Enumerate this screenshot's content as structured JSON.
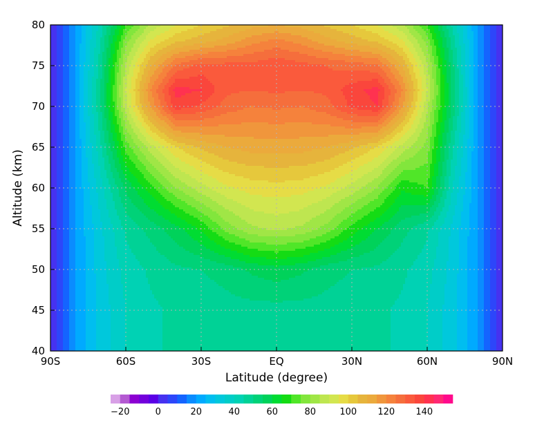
{
  "chart_data": {
    "type": "heatmap",
    "xlabel": "Latitude (degree)",
    "ylabel": "Altitude (km)",
    "xlim": [
      -90,
      90
    ],
    "ylim": [
      40,
      80
    ],
    "x_ticks": [
      {
        "value": -90,
        "label": "90S"
      },
      {
        "value": -60,
        "label": "60S"
      },
      {
        "value": -30,
        "label": "30S"
      },
      {
        "value": 0,
        "label": "EQ"
      },
      {
        "value": 30,
        "label": "30N"
      },
      {
        "value": 60,
        "label": "60N"
      },
      {
        "value": 90,
        "label": "90N"
      }
    ],
    "y_ticks": [
      {
        "value": 40,
        "label": "40"
      },
      {
        "value": 45,
        "label": "45"
      },
      {
        "value": 50,
        "label": "50"
      },
      {
        "value": 55,
        "label": "55"
      },
      {
        "value": 60,
        "label": "60"
      },
      {
        "value": 65,
        "label": "65"
      },
      {
        "value": 70,
        "label": "70"
      },
      {
        "value": 75,
        "label": "75"
      },
      {
        "value": 80,
        "label": "80"
      }
    ],
    "grid": true,
    "colorbar": {
      "placement": "bottom",
      "min": -25,
      "max": 155,
      "step": 5,
      "ticks": [
        {
          "value": -20,
          "label": "−20"
        },
        {
          "value": 0,
          "label": "0"
        },
        {
          "value": 20,
          "label": "20"
        },
        {
          "value": 40,
          "label": "40"
        },
        {
          "value": 60,
          "label": "60"
        },
        {
          "value": 80,
          "label": "80"
        },
        {
          "value": 100,
          "label": "100"
        },
        {
          "value": 120,
          "label": "120"
        },
        {
          "value": 140,
          "label": "140"
        }
      ],
      "colors": [
        "#d8a0e6",
        "#b45ad2",
        "#8c00d2",
        "#7300dc",
        "#5a00e6",
        "#4632f0",
        "#2d46fa",
        "#1464ff",
        "#0a8cff",
        "#00aaff",
        "#00bef0",
        "#00c8dc",
        "#00cdc8",
        "#00d2b4",
        "#00d296",
        "#00d278",
        "#00d25a",
        "#00dc32",
        "#14dc14",
        "#50e628",
        "#82e63c",
        "#a0e646",
        "#bee650",
        "#d2e650",
        "#e6dc46",
        "#e6c83c",
        "#e6b43c",
        "#ebaa3c",
        "#f0963c",
        "#f5823c",
        "#f56e3c",
        "#fa5a3c",
        "#fa463c",
        "#ff3250",
        "#ff2873",
        "#ff0a8c"
      ]
    },
    "description_grid": {
      "lats": [
        -90,
        -80,
        -70,
        -60,
        -50,
        -40,
        -30,
        -20,
        -10,
        0,
        10,
        20,
        30,
        40,
        50,
        60,
        70,
        80,
        90
      ],
      "alts": [
        40,
        45,
        50,
        55,
        60,
        65,
        70,
        72,
        75,
        78,
        80
      ],
      "values": [
        [
          0,
          20,
          32,
          40,
          44,
          46,
          47,
          48,
          48,
          47,
          48,
          48,
          47,
          46,
          44,
          40,
          32,
          20,
          0
        ],
        [
          0,
          20,
          32,
          40,
          44,
          46,
          47,
          48,
          48,
          48,
          48,
          48,
          47,
          46,
          44,
          40,
          32,
          20,
          0
        ],
        [
          0,
          20,
          33,
          42,
          46,
          49,
          50,
          52,
          56,
          58,
          56,
          52,
          50,
          49,
          46,
          42,
          33,
          20,
          0
        ],
        [
          0,
          20,
          34,
          46,
          52,
          58,
          66,
          77,
          84,
          86,
          84,
          78,
          68,
          60,
          52,
          46,
          34,
          20,
          0
        ],
        [
          0,
          20,
          38,
          56,
          68,
          80,
          88,
          94,
          97,
          98,
          97,
          94,
          88,
          80,
          66,
          70,
          40,
          20,
          0
        ],
        [
          0,
          20,
          44,
          72,
          88,
          100,
          106,
          110,
          112,
          112,
          112,
          110,
          106,
          100,
          88,
          78,
          46,
          20,
          0
        ],
        [
          0,
          20,
          50,
          88,
          116,
          138,
          134,
          128,
          125,
          126,
          125,
          128,
          136,
          140,
          116,
          86,
          54,
          20,
          0
        ],
        [
          0,
          20,
          50,
          90,
          120,
          142,
          140,
          131,
          130,
          131,
          130,
          131,
          138,
          142,
          120,
          90,
          54,
          20,
          0
        ],
        [
          0,
          20,
          48,
          86,
          110,
          126,
          132,
          132,
          132,
          134,
          132,
          130,
          128,
          126,
          110,
          86,
          52,
          20,
          0
        ],
        [
          0,
          20,
          45,
          78,
          96,
          104,
          108,
          112,
          118,
          122,
          118,
          112,
          108,
          104,
          96,
          78,
          48,
          20,
          0
        ],
        [
          0,
          20,
          42,
          70,
          86,
          95,
          100,
          104,
          108,
          110,
          108,
          104,
          100,
          95,
          86,
          70,
          44,
          20,
          0
        ]
      ]
    }
  }
}
